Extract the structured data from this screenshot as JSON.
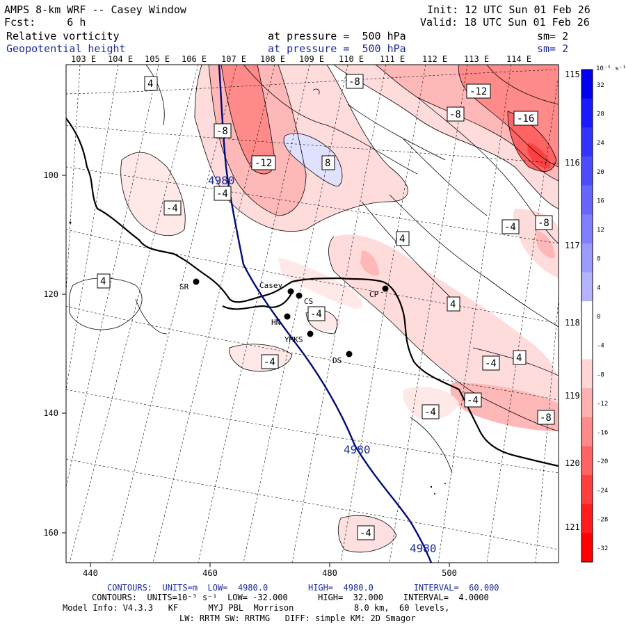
{
  "header": {
    "title": "AMPS 8-km WRF -- Casey Window",
    "fcst": "Fcst:     6 h",
    "init": "Init: 12 UTC Sun 01 Feb 26",
    "valid": "Valid: 18 UTC Sun 01 Feb 26",
    "field1_name": "Relative vorticity",
    "field1_level": "at pressure =  500 hPa",
    "field1_sm": "sm= 2",
    "field2_name": "Geopotential height",
    "field2_level": "at pressure =  500 hPa",
    "field2_sm": "sm= 2"
  },
  "map": {
    "lon_labels_top": [
      "103 E",
      "104 E",
      "105 E",
      "106 E",
      "107 E",
      "108 E",
      "109 E",
      "110 E",
      "111 E",
      "112 E",
      "113 E",
      "114 E"
    ],
    "lat_labels_right": [
      "115 E",
      "116 E",
      "117 E",
      "118 E",
      "119 E",
      "120 E",
      "121 E"
    ],
    "x_ticks": [
      "440",
      "460",
      "480",
      "500"
    ],
    "y_ticks": [
      "100",
      "120",
      "140",
      "160"
    ],
    "stations": [
      "SR",
      "Casey",
      "CS",
      "HN",
      "YMKS",
      "DS",
      "CP"
    ],
    "height_contour_label": "4980",
    "vort_labels": [
      "-8",
      "-12",
      "-16",
      "-4",
      "4",
      "8"
    ]
  },
  "colorbar": {
    "units": "10⁻⁵ s⁻¹",
    "labels": [
      "32",
      "28",
      "24",
      "20",
      "16",
      "12",
      "8",
      "4",
      "0",
      "-4",
      "-8",
      "-12",
      "-16",
      "-20",
      "-24",
      "-28",
      "-32"
    ],
    "colors": [
      "#0000ee",
      "#1a1aff",
      "#3333ff",
      "#4d4dff",
      "#6666ff",
      "#8080ff",
      "#9a9aff",
      "#b3b3ff",
      "#ffffff",
      "#ffffff",
      "#ffd6d6",
      "#ffb0b0",
      "#ff8a8a",
      "#ff6464",
      "#ff3e3e",
      "#ff1c1c",
      "#ff0000"
    ]
  },
  "footer": {
    "line1": "CONTOURS:  UNITS=m  LOW=  4980.0        HIGH=  4980.0        INTERVAL=  60.000",
    "line2": "CONTOURS:  UNITS=10⁻⁵ s⁻¹  LOW= -32.000      HIGH=  32.000    INTERVAL=  4.0000",
    "line3": "Model Info: V4.3.3   KF      MYJ PBL  Morrison            8.0 km,  60 levels,",
    "line4": "LW: RRTM SW: RRTMG   DIFF: simple KM: 2D Smagor"
  }
}
